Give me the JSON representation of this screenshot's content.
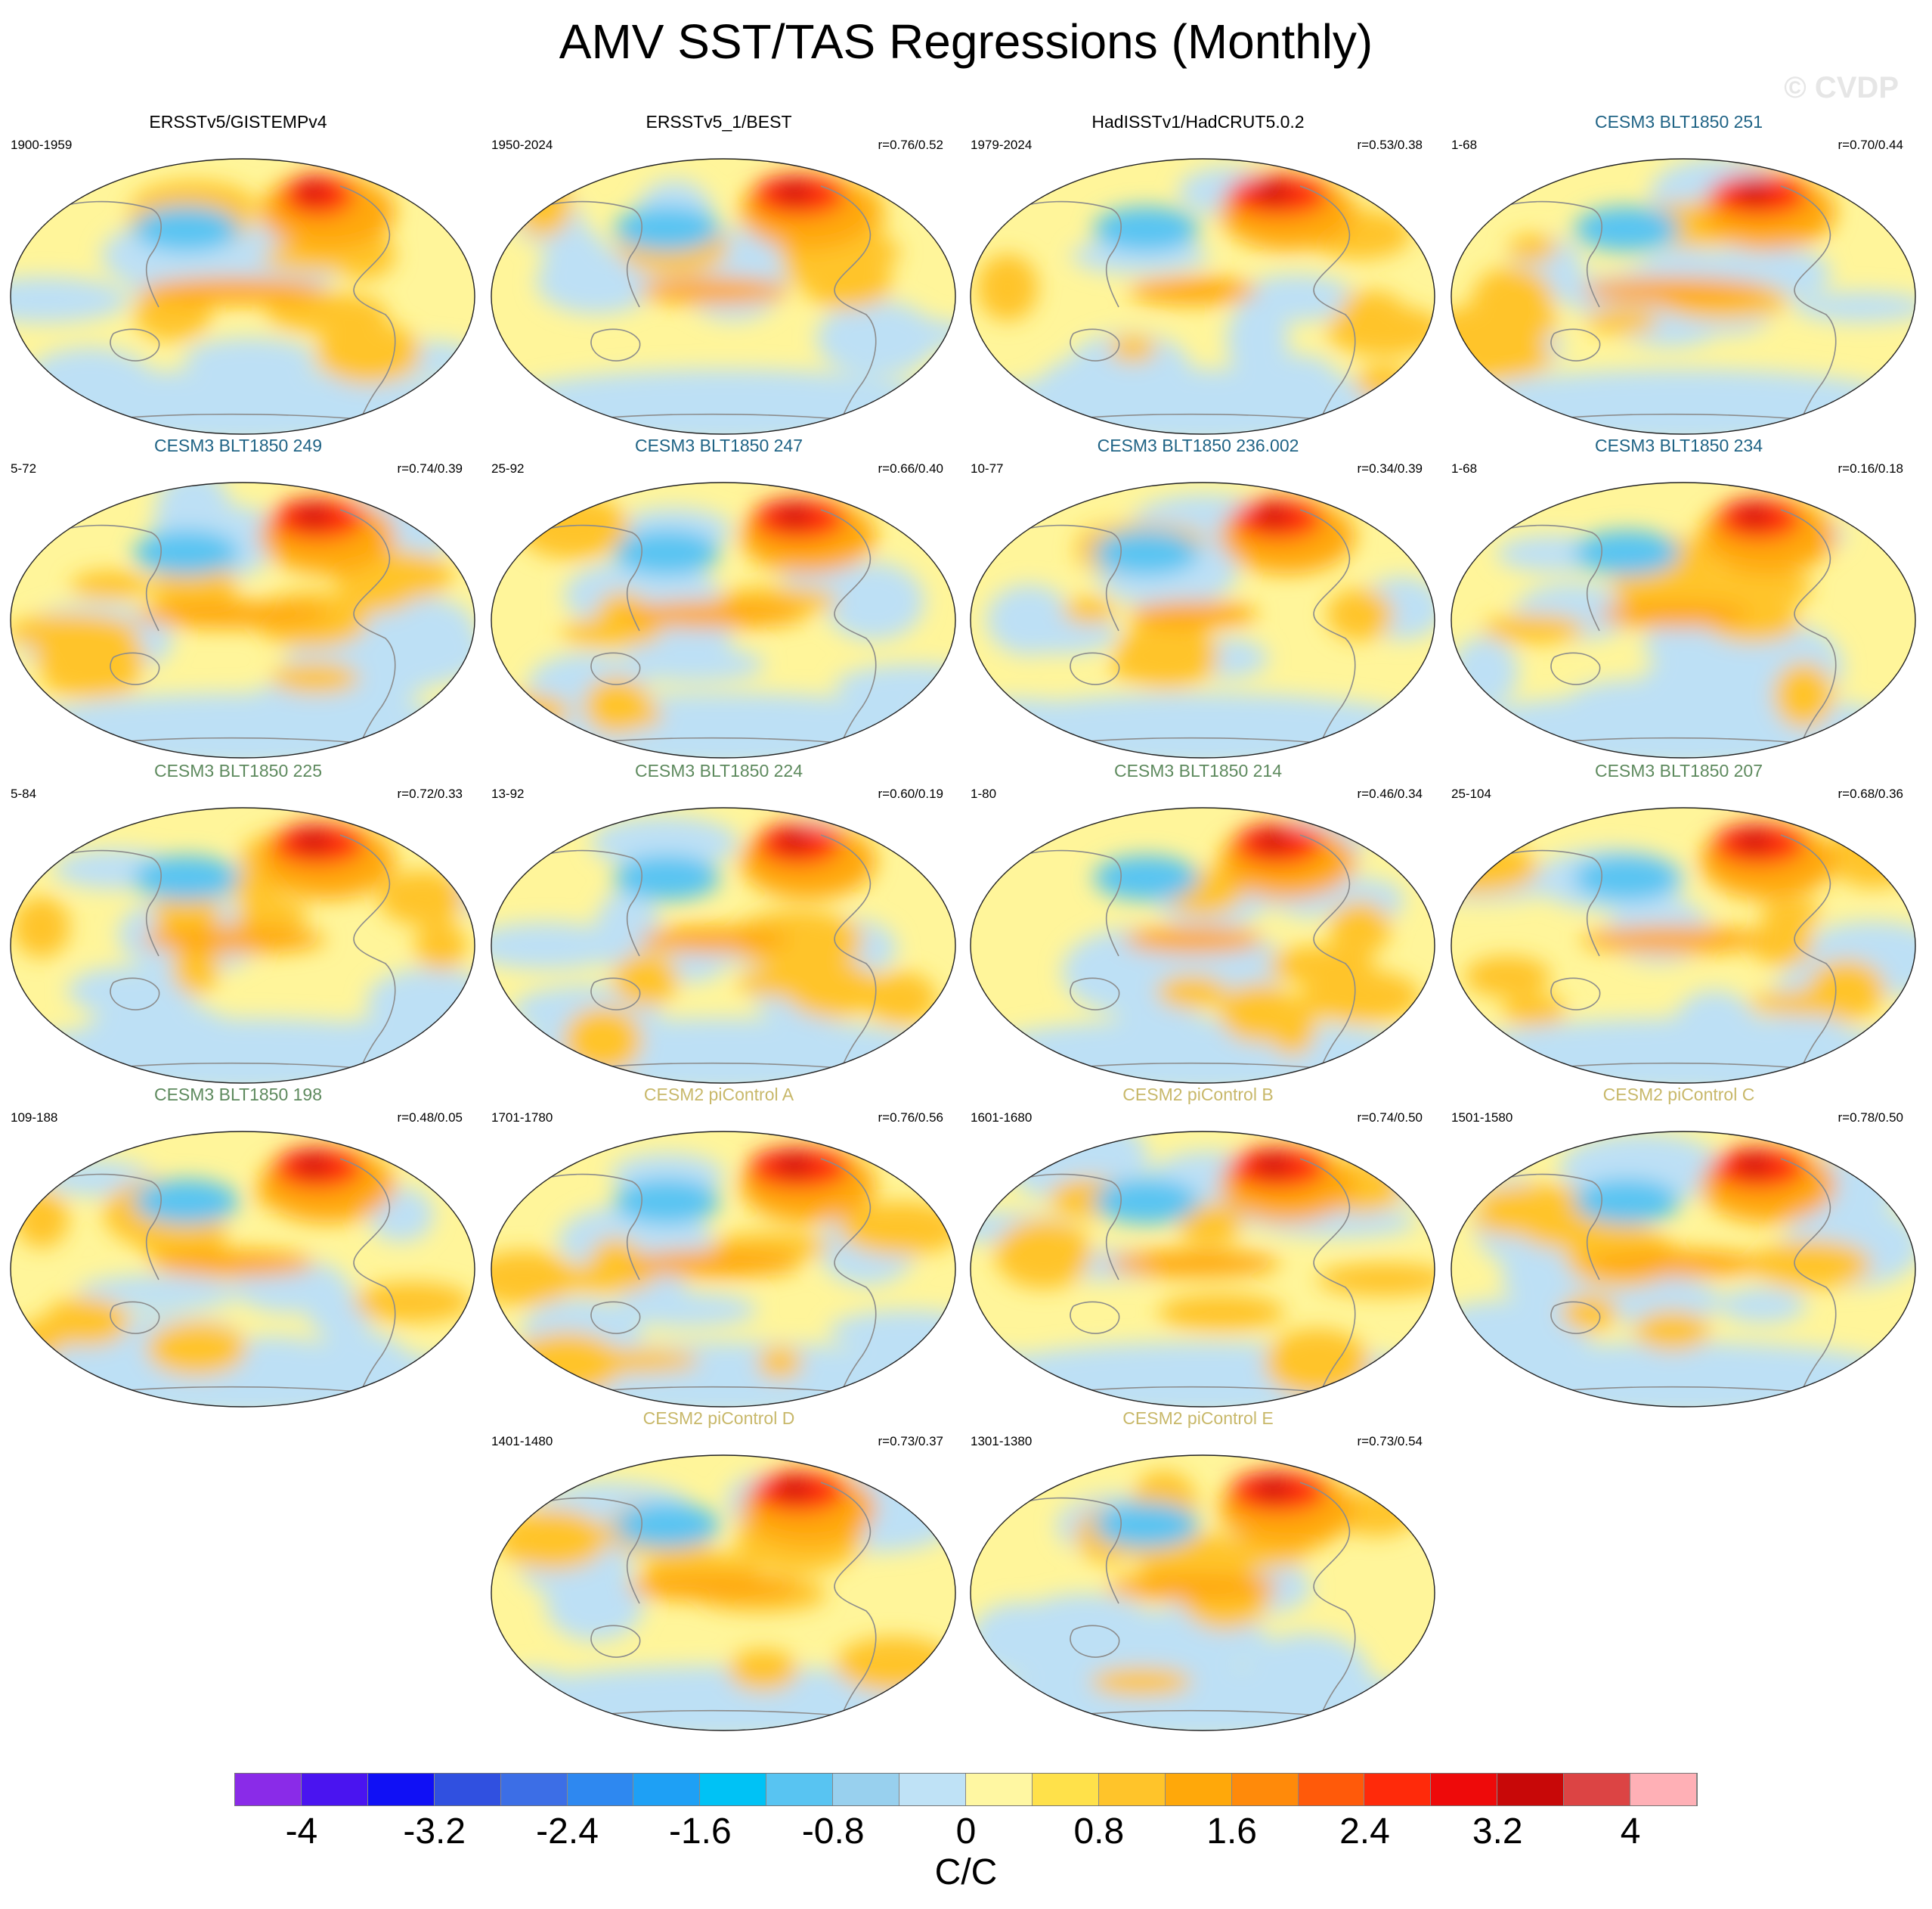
{
  "title": "AMV SST/TAS Regressions (Monthly)",
  "credit": "© CVDP",
  "colors": {
    "obs_title": "#000000",
    "cesm3_251_234": "#1f6385",
    "cesm3_225_198": "#5e8a5e",
    "cesm2": "#c8b86a",
    "ocean_cool": "#bde0f5",
    "ocean_warm": "#fff59a",
    "coast": "#8c8c8c"
  },
  "panels": [
    {
      "title": "ERSSTv5/GISTEMPv4",
      "period": "1900-1959",
      "r": "",
      "group": "obs",
      "warmth": 0.55,
      "nh_hot": 0.6,
      "seed": 1
    },
    {
      "title": "ERSSTv5_1/BEST",
      "period": "1950-2024",
      "r": "r=0.76/0.52",
      "group": "obs",
      "warmth": 0.4,
      "nh_hot": 0.85,
      "seed": 2
    },
    {
      "title": "HadISSTv1/HadCRUT5.0.2",
      "period": "1979-2024",
      "r": "r=0.53/0.38",
      "group": "obs",
      "warmth": 0.3,
      "nh_hot": 0.95,
      "seed": 3
    },
    {
      "title": "CESM3 BLT1850 251",
      "period": "1-68",
      "r": "r=0.70/0.44",
      "group": "cesm3a",
      "warmth": 0.55,
      "nh_hot": 0.9,
      "seed": 4
    },
    {
      "title": "CESM3 BLT1850 249",
      "period": "5-72",
      "r": "r=0.74/0.39",
      "group": "cesm3a",
      "warmth": 0.6,
      "nh_hot": 0.85,
      "seed": 5
    },
    {
      "title": "CESM3 BLT1850 247",
      "period": "25-92",
      "r": "r=0.66/0.40",
      "group": "cesm3a",
      "warmth": 0.55,
      "nh_hot": 0.85,
      "seed": 6
    },
    {
      "title": "CESM3 BLT1850 236.002",
      "period": "10-77",
      "r": "r=0.34/0.39",
      "group": "cesm3a",
      "warmth": 0.3,
      "nh_hot": 0.8,
      "seed": 7
    },
    {
      "title": "CESM3 BLT1850 234",
      "period": "1-68",
      "r": "r=0.16/0.18",
      "group": "cesm3a",
      "warmth": 0.4,
      "nh_hot": 0.75,
      "seed": 8
    },
    {
      "title": "CESM3 BLT1850 225",
      "period": "5-84",
      "r": "r=0.72/0.33",
      "group": "cesm3b",
      "warmth": 0.55,
      "nh_hot": 0.85,
      "seed": 9
    },
    {
      "title": "CESM3 BLT1850 224",
      "period": "13-92",
      "r": "r=0.60/0.19",
      "group": "cesm3b",
      "warmth": 0.4,
      "nh_hot": 0.75,
      "seed": 10
    },
    {
      "title": "CESM3 BLT1850 214",
      "period": "1-80",
      "r": "r=0.46/0.34",
      "group": "cesm3b",
      "warmth": 0.35,
      "nh_hot": 0.8,
      "seed": 11
    },
    {
      "title": "CESM3 BLT1850 207",
      "period": "25-104",
      "r": "r=0.68/0.36",
      "group": "cesm3b",
      "warmth": 0.55,
      "nh_hot": 0.85,
      "seed": 12
    },
    {
      "title": "CESM3 BLT1850 198",
      "period": "109-188",
      "r": "r=0.48/0.05",
      "group": "cesm3b",
      "warmth": 0.45,
      "nh_hot": 0.8,
      "seed": 13
    },
    {
      "title": "CESM2 piControl A",
      "period": "1701-1780",
      "r": "r=0.76/0.56",
      "group": "cesm2",
      "warmth": 0.5,
      "nh_hot": 0.95,
      "seed": 14
    },
    {
      "title": "CESM2 piControl B",
      "period": "1601-1680",
      "r": "r=0.74/0.50",
      "group": "cesm2",
      "warmth": 0.5,
      "nh_hot": 0.9,
      "seed": 15
    },
    {
      "title": "CESM2 piControl C",
      "period": "1501-1580",
      "r": "r=0.78/0.50",
      "group": "cesm2",
      "warmth": 0.55,
      "nh_hot": 0.85,
      "seed": 16
    },
    {
      "title": "CESM2 piControl D",
      "period": "1401-1480",
      "r": "r=0.73/0.37",
      "group": "cesm2",
      "warmth": 0.5,
      "nh_hot": 0.85,
      "seed": 17
    },
    {
      "title": "CESM2 piControl E",
      "period": "1301-1380",
      "r": "r=0.73/0.54",
      "group": "cesm2",
      "warmth": 0.5,
      "nh_hot": 0.9,
      "seed": 18
    }
  ],
  "colorbar": {
    "units": "C/C",
    "tick_labels": [
      "-4",
      "-3.2",
      "-2.4",
      "-1.6",
      "-0.8",
      "0",
      "0.8",
      "1.6",
      "2.4",
      "3.2",
      "4"
    ],
    "colors": [
      "#8a2be8",
      "#4a14f0",
      "#1010f5",
      "#3050e0",
      "#3c6ee6",
      "#2e88f0",
      "#1ea0f5",
      "#00c2f5",
      "#58c4f2",
      "#98d0ee",
      "#bfe2f6",
      "#fff7a2",
      "#ffe14a",
      "#ffc42a",
      "#ffa80a",
      "#ff8a0a",
      "#ff5a0a",
      "#ff2a0a",
      "#ee0a0a",
      "#c80808",
      "#dc4444",
      "#ffb0b6"
    ]
  }
}
